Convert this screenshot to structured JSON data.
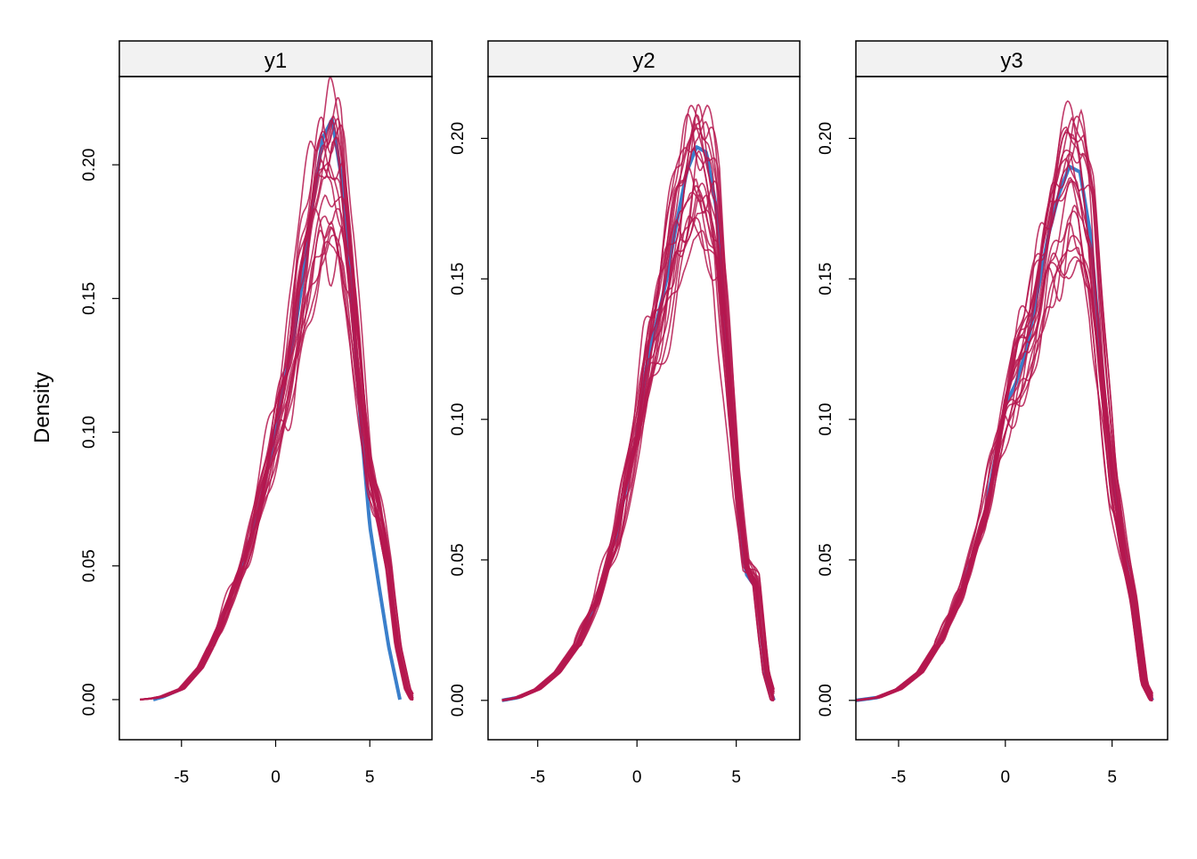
{
  "ylabel": "Density",
  "colors": {
    "observed": "#3A7FCB",
    "imputed": "#B5174F",
    "strip_bg": "#F2F2F2",
    "frame": "#000000"
  },
  "chart_data": {
    "type": "line",
    "layout": "three panels side by side, each with its own y scale, shared x tick values",
    "ylabel": "Density",
    "grid": false,
    "legend": "none",
    "panels": [
      {
        "label": "y1",
        "xlim": [
          -8.3,
          8.3
        ],
        "ylim": [
          -0.015,
          0.233
        ],
        "x_ticks": [
          -5,
          0,
          5
        ],
        "y_ticks": [
          0.0,
          0.05,
          0.1,
          0.15,
          0.2
        ],
        "y_tick_labels": [
          "0.00",
          "0.05",
          "0.10",
          "0.15",
          "0.20"
        ],
        "observed": {
          "x": [
            -6.5,
            -6,
            -5,
            -4,
            -3,
            -2,
            -1,
            0,
            0.5,
            1,
            1.5,
            2,
            2.5,
            3,
            3.5,
            4,
            4.5,
            5,
            5.5,
            6,
            6.6
          ],
          "y": [
            0.0,
            0.001,
            0.004,
            0.012,
            0.027,
            0.046,
            0.068,
            0.1,
            0.12,
            0.137,
            0.16,
            0.187,
            0.21,
            0.217,
            0.195,
            0.155,
            0.105,
            0.065,
            0.042,
            0.02,
            0.0
          ]
        },
        "imputed_count": 20,
        "imputed_center": {
          "x": [
            -7.2,
            -6.5,
            -6,
            -5,
            -4,
            -3,
            -2,
            -1,
            0,
            0.5,
            1,
            1.5,
            2,
            2.5,
            3,
            3.5,
            4,
            4.5,
            5,
            5.5,
            6,
            6.5,
            7,
            7.3
          ],
          "y": [
            0.0,
            0.0005,
            0.0012,
            0.004,
            0.012,
            0.026,
            0.045,
            0.068,
            0.1,
            0.118,
            0.135,
            0.158,
            0.18,
            0.195,
            0.196,
            0.185,
            0.158,
            0.12,
            0.085,
            0.068,
            0.05,
            0.02,
            0.004,
            0.0
          ]
        }
      },
      {
        "label": "y2",
        "xlim": [
          -7.5,
          8.2
        ],
        "ylim": [
          -0.014,
          0.222
        ],
        "x_ticks": [
          -5,
          0,
          5
        ],
        "y_ticks": [
          0.0,
          0.05,
          0.1,
          0.15,
          0.2
        ],
        "y_tick_labels": [
          "0.00",
          "0.05",
          "0.10",
          "0.15",
          "0.20"
        ],
        "observed": {
          "x": [
            -6.8,
            -6,
            -5,
            -4,
            -3,
            -2,
            -1,
            0,
            0.5,
            1,
            1.5,
            2,
            2.5,
            3,
            3.5,
            4,
            4.5,
            5,
            5.5,
            6,
            6.5,
            6.9
          ],
          "y": [
            0.0,
            0.001,
            0.004,
            0.01,
            0.02,
            0.036,
            0.06,
            0.095,
            0.12,
            0.135,
            0.15,
            0.17,
            0.188,
            0.197,
            0.195,
            0.175,
            0.128,
            0.075,
            0.045,
            0.04,
            0.008,
            0.0
          ]
        },
        "imputed_count": 20,
        "imputed_center": {
          "x": [
            -6.8,
            -6,
            -5,
            -4,
            -3,
            -2,
            -1,
            0,
            0.5,
            1,
            1.5,
            2,
            2.5,
            3,
            3.5,
            4,
            4.5,
            5,
            5.5,
            6,
            6.5,
            6.9
          ],
          "y": [
            0.0,
            0.001,
            0.004,
            0.01,
            0.02,
            0.036,
            0.06,
            0.096,
            0.12,
            0.133,
            0.15,
            0.17,
            0.183,
            0.19,
            0.183,
            0.17,
            0.128,
            0.078,
            0.048,
            0.042,
            0.01,
            0.0
          ]
        }
      },
      {
        "label": "y3",
        "xlim": [
          -7.0,
          7.6
        ],
        "ylim": [
          -0.014,
          0.222
        ],
        "x_ticks": [
          -5,
          0,
          5
        ],
        "y_ticks": [
          0.0,
          0.05,
          0.1,
          0.15,
          0.2
        ],
        "y_tick_labels": [
          "0.00",
          "0.05",
          "0.10",
          "0.15",
          "0.20"
        ],
        "observed": {
          "x": [
            -7.0,
            -6,
            -5,
            -4,
            -3,
            -2,
            -1,
            0,
            0.5,
            1,
            1.5,
            2,
            2.5,
            3,
            3.5,
            4,
            4.5,
            5,
            5.5,
            6,
            6.5,
            6.9
          ],
          "y": [
            0.0,
            0.001,
            0.004,
            0.01,
            0.022,
            0.04,
            0.065,
            0.105,
            0.113,
            0.125,
            0.145,
            0.165,
            0.18,
            0.19,
            0.188,
            0.165,
            0.12,
            0.08,
            0.055,
            0.035,
            0.005,
            0.0
          ]
        },
        "imputed_count": 20,
        "imputed_center": {
          "x": [
            -7.0,
            -6,
            -5,
            -4,
            -3,
            -2,
            -1,
            0,
            0.5,
            1,
            1.5,
            2,
            2.5,
            3,
            3.5,
            4,
            4.5,
            5,
            5.5,
            6,
            6.5,
            6.9
          ],
          "y": [
            0.0,
            0.001,
            0.004,
            0.01,
            0.022,
            0.04,
            0.066,
            0.105,
            0.12,
            0.128,
            0.145,
            0.165,
            0.178,
            0.188,
            0.185,
            0.165,
            0.12,
            0.08,
            0.055,
            0.035,
            0.006,
            0.0
          ]
        }
      }
    ]
  }
}
